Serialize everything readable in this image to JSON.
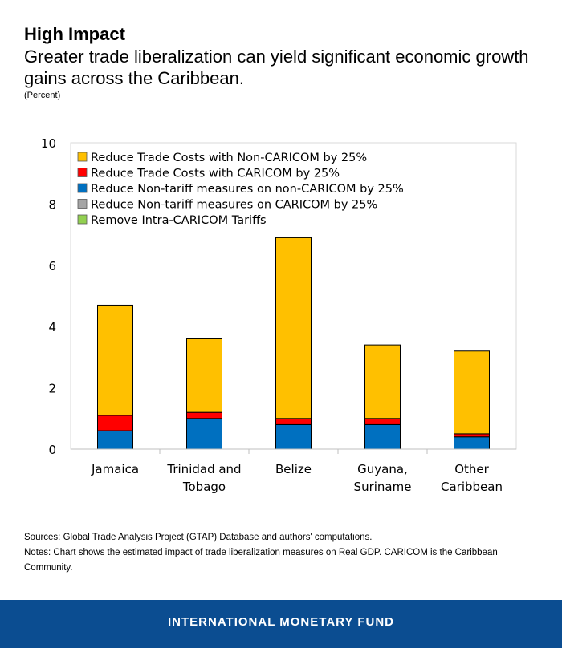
{
  "header": {
    "title": "High Impact",
    "subtitle": "Greater trade liberalization can yield significant economic growth gains across the Caribbean.",
    "unit": "(Percent)"
  },
  "chart_data": {
    "type": "bar",
    "stacked": true,
    "categories": [
      [
        "Jamaica"
      ],
      [
        "Trinidad and",
        "Tobago"
      ],
      [
        "Belize"
      ],
      [
        "Guyana,",
        "Suriname"
      ],
      [
        "Other",
        "Caribbean"
      ]
    ],
    "ylim": [
      0,
      10
    ],
    "yticks": [
      0,
      2,
      4,
      6,
      8,
      10
    ],
    "grid": false,
    "legend_position": "top-left",
    "series": [
      {
        "name": "Reduce Non-tariff measures on non-CARICOM by 25%",
        "color": "#0070c0",
        "values": [
          0.6,
          1.0,
          0.8,
          0.8,
          0.4
        ]
      },
      {
        "name": "Reduce Non-tariff measures on CARICOM by 25%",
        "color": "#a5a5a5",
        "values": [
          0,
          0,
          0,
          0,
          0
        ]
      },
      {
        "name": "Remove Intra-CARICOM Tariffs",
        "color": "#92d050",
        "values": [
          0,
          0,
          0,
          0,
          0
        ]
      },
      {
        "name": "Reduce Trade Costs with CARICOM by 25%",
        "color": "#ff0000",
        "values": [
          0.5,
          0.2,
          0.2,
          0.2,
          0.1
        ]
      },
      {
        "name": "Reduce Trade Costs with Non-CARICOM by 25%",
        "color": "#ffc000",
        "values": [
          3.6,
          2.4,
          5.9,
          2.4,
          2.7
        ]
      }
    ],
    "legend_order": [
      4,
      3,
      0,
      1,
      2
    ]
  },
  "notes": {
    "sources": "Sources: Global Trade Analysis Project (GTAP) Database and authors' computations.",
    "notes": "Notes: Chart shows the estimated impact of trade liberalization measures on Real GDP. CARICOM is the Caribbean Community."
  },
  "footer": {
    "org": "INTERNATIONAL MONETARY FUND"
  }
}
